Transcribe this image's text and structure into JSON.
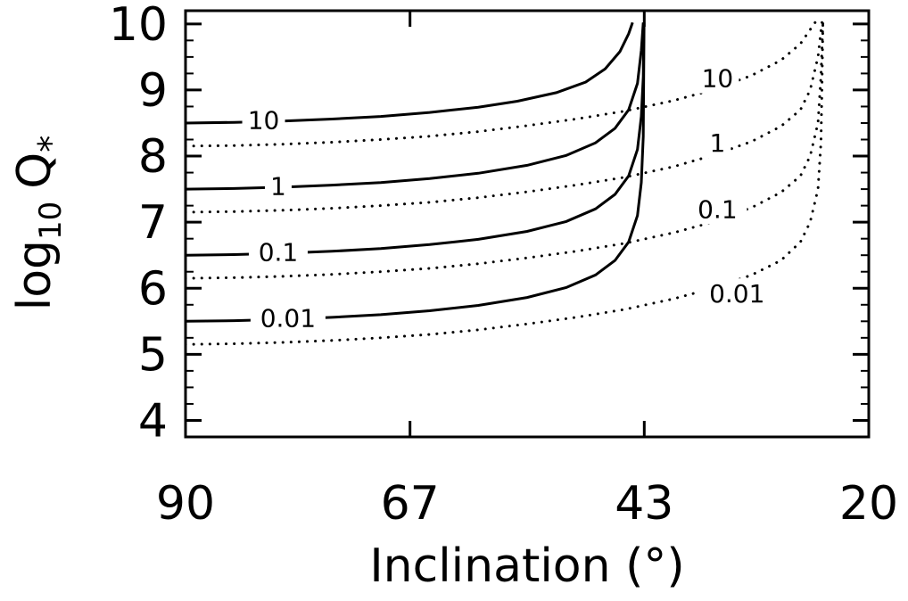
{
  "chart_data": {
    "type": "line",
    "title": "",
    "xlabel": "Inclination (°)",
    "ylabel": {
      "base": "log",
      "subscript": "10",
      "symbol": "Q",
      "sup": "*"
    },
    "xlim": [
      90,
      20
    ],
    "ylim": [
      3.75,
      10.2
    ],
    "x_ticks": [
      "90",
      "67",
      "43",
      "20"
    ],
    "x_tick_values": [
      90,
      67,
      43,
      20
    ],
    "y_ticks": [
      "4",
      "5",
      "6",
      "7",
      "8",
      "9",
      "10"
    ],
    "y_tick_values": [
      4,
      5,
      6,
      7,
      8,
      9,
      10
    ],
    "grid": false,
    "legend": "none",
    "color": "#000000",
    "series": [
      {
        "label": "10",
        "style": "solid",
        "label_pos": [
          82,
          8.55
        ],
        "points": [
          [
            90,
            8.5
          ],
          [
            85,
            8.51
          ],
          [
            80,
            8.53
          ],
          [
            75,
            8.56
          ],
          [
            70,
            8.6
          ],
          [
            65,
            8.66
          ],
          [
            60,
            8.74
          ],
          [
            56,
            8.83
          ],
          [
            52,
            8.96
          ],
          [
            49,
            9.12
          ],
          [
            47,
            9.32
          ],
          [
            45.5,
            9.58
          ],
          [
            44.6,
            9.85
          ],
          [
            44.2,
            10.02
          ]
        ]
      },
      {
        "label": "1",
        "style": "solid",
        "label_pos": [
          80.5,
          7.55
        ],
        "points": [
          [
            90,
            7.5
          ],
          [
            85,
            7.51
          ],
          [
            80,
            7.53
          ],
          [
            75,
            7.56
          ],
          [
            70,
            7.6
          ],
          [
            65,
            7.66
          ],
          [
            60,
            7.74
          ],
          [
            55,
            7.86
          ],
          [
            51,
            8.01
          ],
          [
            48,
            8.2
          ],
          [
            46,
            8.42
          ],
          [
            44.6,
            8.7
          ],
          [
            43.7,
            9.1
          ],
          [
            43.3,
            9.6
          ],
          [
            43.1,
            10.02
          ]
        ]
      },
      {
        "label": "0.1",
        "style": "solid",
        "label_pos": [
          80.5,
          6.55
        ],
        "points": [
          [
            90,
            6.5
          ],
          [
            85,
            6.51
          ],
          [
            80,
            6.53
          ],
          [
            75,
            6.56
          ],
          [
            70,
            6.6
          ],
          [
            65,
            6.66
          ],
          [
            60,
            6.74
          ],
          [
            55,
            6.86
          ],
          [
            51,
            7.01
          ],
          [
            48,
            7.2
          ],
          [
            46,
            7.42
          ],
          [
            44.6,
            7.7
          ],
          [
            43.7,
            8.1
          ],
          [
            43.3,
            8.6
          ],
          [
            43.1,
            9.2
          ],
          [
            43.05,
            10.02
          ]
        ]
      },
      {
        "label": "0.01",
        "style": "solid",
        "label_pos": [
          79.5,
          5.55
        ],
        "points": [
          [
            90,
            5.5
          ],
          [
            85,
            5.51
          ],
          [
            80,
            5.53
          ],
          [
            75,
            5.56
          ],
          [
            70,
            5.6
          ],
          [
            65,
            5.66
          ],
          [
            60,
            5.74
          ],
          [
            55,
            5.86
          ],
          [
            51,
            6.01
          ],
          [
            48,
            6.2
          ],
          [
            46,
            6.42
          ],
          [
            44.6,
            6.7
          ],
          [
            43.7,
            7.1
          ],
          [
            43.3,
            7.6
          ],
          [
            43.1,
            8.3
          ],
          [
            43.02,
            10.02
          ]
        ]
      },
      {
        "label": "10",
        "style": "dotted",
        "label_pos": [
          35.5,
          9.18
        ],
        "points": [
          [
            90,
            8.15
          ],
          [
            85,
            8.16
          ],
          [
            80,
            8.18
          ],
          [
            75,
            8.21
          ],
          [
            70,
            8.25
          ],
          [
            65,
            8.3
          ],
          [
            60,
            8.37
          ],
          [
            55,
            8.46
          ],
          [
            50,
            8.56
          ],
          [
            45,
            8.68
          ],
          [
            40,
            8.84
          ],
          [
            36,
            9.0
          ],
          [
            32,
            9.22
          ],
          [
            29,
            9.45
          ],
          [
            27,
            9.7
          ],
          [
            25.5,
            10.02
          ]
        ]
      },
      {
        "label": "1",
        "style": "dotted",
        "label_pos": [
          35.5,
          8.2
        ],
        "points": [
          [
            90,
            7.15
          ],
          [
            85,
            7.16
          ],
          [
            80,
            7.18
          ],
          [
            75,
            7.21
          ],
          [
            70,
            7.25
          ],
          [
            65,
            7.3
          ],
          [
            60,
            7.37
          ],
          [
            55,
            7.46
          ],
          [
            50,
            7.56
          ],
          [
            45,
            7.68
          ],
          [
            40,
            7.84
          ],
          [
            36,
            8.01
          ],
          [
            32,
            8.22
          ],
          [
            29,
            8.45
          ],
          [
            27,
            8.7
          ],
          [
            26,
            9.0
          ],
          [
            25.2,
            9.5
          ],
          [
            24.8,
            10.02
          ]
        ]
      },
      {
        "label": "0.1",
        "style": "dotted",
        "label_pos": [
          35.5,
          7.2
        ],
        "points": [
          [
            90,
            6.15
          ],
          [
            85,
            6.16
          ],
          [
            80,
            6.18
          ],
          [
            75,
            6.21
          ],
          [
            70,
            6.25
          ],
          [
            65,
            6.3
          ],
          [
            60,
            6.37
          ],
          [
            55,
            6.46
          ],
          [
            50,
            6.56
          ],
          [
            45,
            6.68
          ],
          [
            40,
            6.84
          ],
          [
            36,
            7.0
          ],
          [
            32,
            7.22
          ],
          [
            29,
            7.45
          ],
          [
            27,
            7.7
          ],
          [
            26,
            8.0
          ],
          [
            25.2,
            8.5
          ],
          [
            24.9,
            9.2
          ],
          [
            24.7,
            10.02
          ]
        ]
      },
      {
        "label": "0.01",
        "style": "dotted",
        "label_pos": [
          33.5,
          5.92
        ],
        "points": [
          [
            90,
            5.15
          ],
          [
            85,
            5.16
          ],
          [
            80,
            5.18
          ],
          [
            75,
            5.21
          ],
          [
            70,
            5.25
          ],
          [
            65,
            5.3
          ],
          [
            60,
            5.37
          ],
          [
            55,
            5.46
          ],
          [
            50,
            5.56
          ],
          [
            45,
            5.68
          ],
          [
            40,
            5.84
          ],
          [
            36,
            6.0
          ],
          [
            32,
            6.2
          ],
          [
            29,
            6.42
          ],
          [
            27,
            6.7
          ],
          [
            26,
            7.0
          ],
          [
            25.2,
            7.5
          ],
          [
            24.9,
            8.2
          ],
          [
            24.8,
            9.0
          ],
          [
            24.7,
            10.02
          ]
        ]
      }
    ]
  }
}
